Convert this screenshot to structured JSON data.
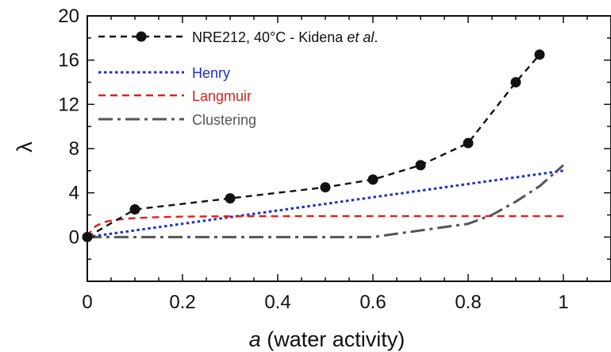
{
  "chart_data": {
    "type": "line",
    "xlabel_symbol": "a",
    "xlabel_rest": " (water activity)",
    "ylabel": "λ",
    "xlim": [
      0,
      1.1
    ],
    "ylim": [
      -4,
      20
    ],
    "x_ticks": [
      0,
      0.2,
      0.4,
      0.6,
      0.8,
      1
    ],
    "x_tick_labels": [
      "0",
      "0.2",
      "0.4",
      "0.6",
      "0.8",
      "1"
    ],
    "y_ticks": [
      0,
      4,
      8,
      12,
      16,
      20
    ],
    "y_tick_labels": [
      "0",
      "4",
      "8",
      "12",
      "16",
      "20"
    ],
    "legend_position": "top-left",
    "grid": false,
    "series": [
      {
        "name": "NRE212, 40°C - Kidena",
        "name_italic_suffix": "et al.",
        "name_end": ".",
        "style": "markers-dashed",
        "color": "#111111",
        "x": [
          0,
          0.1,
          0.3,
          0.5,
          0.6,
          0.7,
          0.8,
          0.9,
          0.95
        ],
        "y": [
          0,
          2.5,
          3.5,
          4.5,
          5.2,
          6.5,
          8.5,
          14,
          16.5
        ]
      },
      {
        "name": "Henry",
        "style": "dotted",
        "color": "#1f2fcf",
        "x": [
          0,
          1
        ],
        "y": [
          0,
          6
        ]
      },
      {
        "name": "Langmuir",
        "style": "dashed",
        "color": "#e0201c",
        "x": [
          0,
          0.01,
          0.02,
          0.04,
          0.06,
          0.08,
          0.1,
          0.15,
          0.2,
          0.3,
          0.5,
          0.7,
          1
        ],
        "y": [
          0,
          0.7,
          1.05,
          1.4,
          1.55,
          1.65,
          1.72,
          1.8,
          1.85,
          1.88,
          1.9,
          1.9,
          1.9
        ]
      },
      {
        "name": "Clustering",
        "style": "dash-dot",
        "color": "#555555",
        "x": [
          0,
          0.6,
          0.7,
          0.8,
          0.85,
          0.9,
          0.95,
          1
        ],
        "y": [
          0,
          0,
          0.6,
          1.2,
          2.0,
          3.2,
          4.6,
          6.5
        ]
      }
    ]
  }
}
